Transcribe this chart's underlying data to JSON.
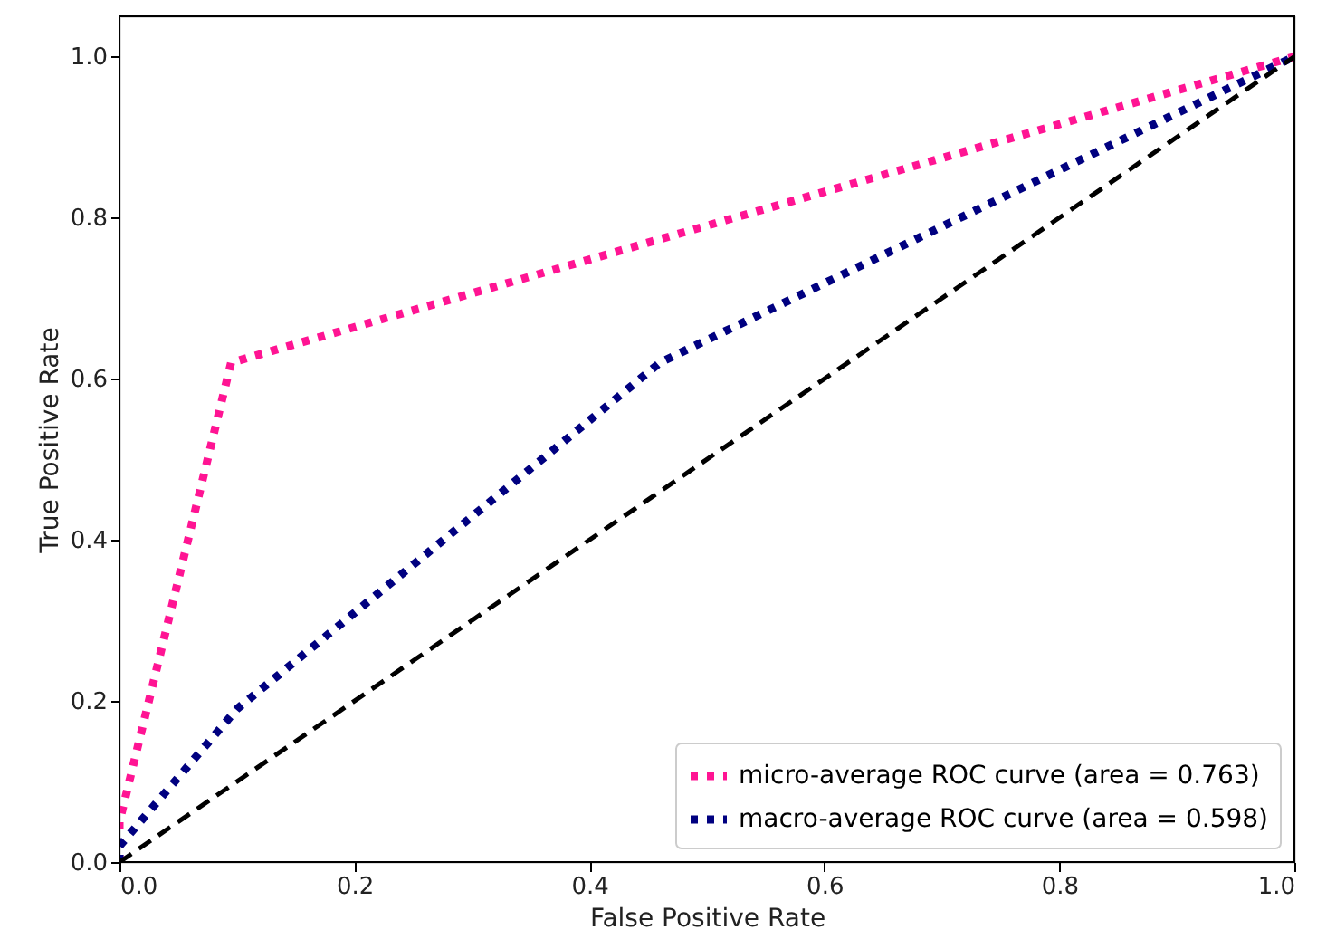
{
  "chart_data": {
    "type": "line",
    "xlabel": "False Positive Rate",
    "ylabel": "True Positive Rate",
    "xlim": [
      0,
      1
    ],
    "ylim": [
      0,
      1.05
    ],
    "xticks": [
      {
        "value": 0,
        "label": "0.0"
      },
      0.2,
      0.4,
      0.6,
      0.8,
      {
        "value": 1,
        "label": "1.0"
      }
    ],
    "yticks": [
      {
        "value": 0,
        "label": "0.0"
      },
      0.2,
      0.4,
      0.6,
      0.8,
      {
        "value": 1,
        "label": "1.0"
      }
    ],
    "legend": "bottom right",
    "marker": "none",
    "series": [
      {
        "name": "micro-average ROC curve (area = 0.763)",
        "color": "#ff1493",
        "line_style": "dotted",
        "x": [
          0,
          0,
          0.095,
          1
        ],
        "values": [
          0,
          0.05,
          0.62,
          1
        ]
      },
      {
        "name": "macro-average ROC curve (area = 0.598)",
        "color": "#000080",
        "line_style": "dotted",
        "x": [
          0,
          0,
          0.1,
          0.46,
          1
        ],
        "values": [
          0,
          0.02,
          0.19,
          0.62,
          1
        ]
      },
      {
        "color": "#000000",
        "line_style": "dashed",
        "x": [
          0,
          1
        ],
        "values": [
          0,
          1
        ]
      }
    ]
  }
}
